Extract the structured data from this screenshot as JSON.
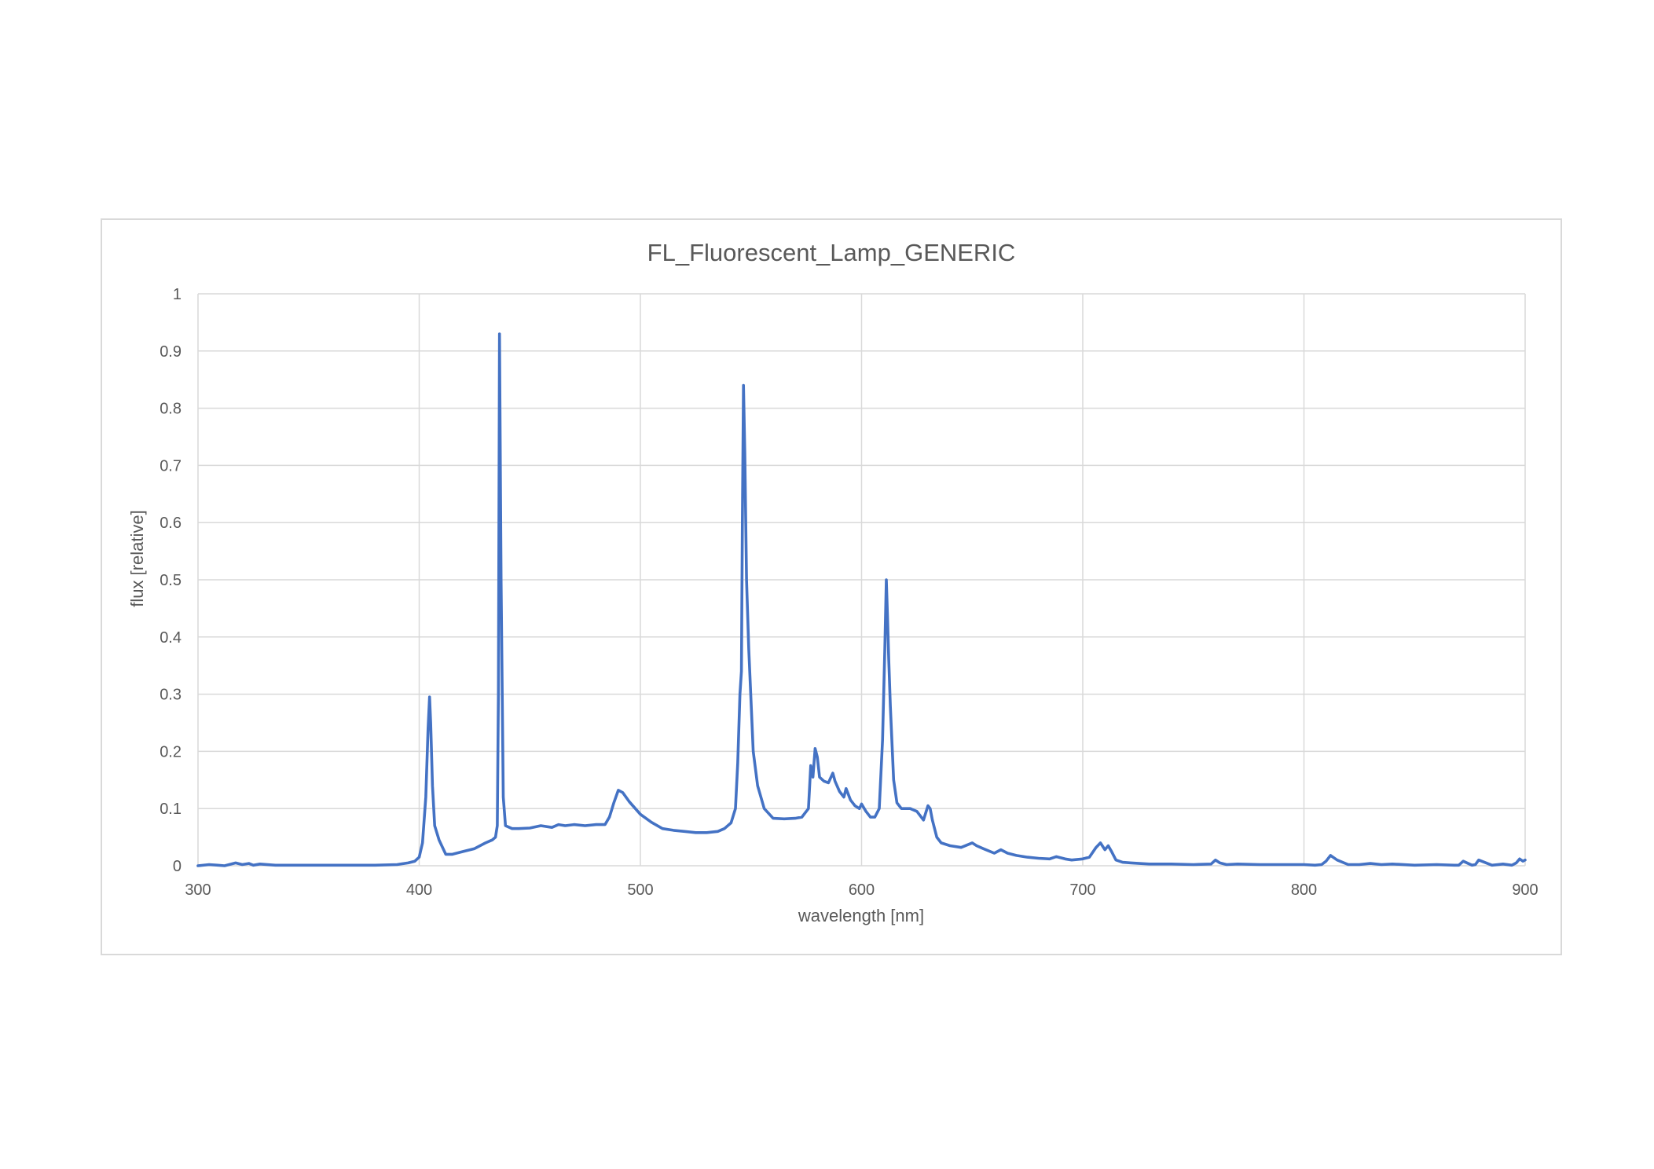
{
  "chart_data": {
    "type": "line",
    "title": "FL_Fluorescent_Lamp_GENERIC",
    "xlabel": "wavelength [nm]",
    "ylabel": "flux [relative]",
    "xlim": [
      300,
      900
    ],
    "ylim": [
      0,
      1
    ],
    "x_ticks": [
      300,
      400,
      500,
      600,
      700,
      800,
      900
    ],
    "y_ticks": [
      0,
      0.1,
      0.2,
      0.3,
      0.4,
      0.5,
      0.6,
      0.7,
      0.8,
      0.9,
      1
    ],
    "x_tick_labels": [
      "300",
      "400",
      "500",
      "600",
      "700",
      "800",
      "900"
    ],
    "y_tick_labels": [
      "0",
      "0.1",
      "0.2",
      "0.3",
      "0.4",
      "0.5",
      "0.6",
      "0.7",
      "0.8",
      "0.9",
      "1"
    ],
    "grid": true,
    "legend": "none",
    "series_color": "#4472c4",
    "series": [
      {
        "x": [
          300,
          305,
          309,
          312,
          317,
          320,
          323,
          325,
          328,
          335,
          345,
          360,
          380,
          390,
          395,
          398,
          400,
          401.5,
          403,
          404,
          404.7,
          405.2,
          406,
          407,
          409,
          412,
          415,
          420,
          425,
          430,
          433,
          434.5,
          435.3,
          435.8,
          436.3,
          437,
          438,
          439,
          442,
          445,
          450,
          455,
          460,
          463,
          466,
          470,
          475,
          480,
          484,
          486,
          488,
          490,
          492,
          495,
          500,
          505,
          510,
          515,
          520,
          525,
          530,
          535,
          538,
          541,
          543,
          544,
          545,
          545.7,
          546.1,
          546.6,
          547.2,
          548,
          549,
          551,
          553,
          556,
          560,
          565,
          570,
          573,
          576,
          577,
          578,
          579,
          580,
          581,
          583,
          585,
          587,
          588,
          590,
          592,
          593,
          595,
          597,
          599,
          600,
          602,
          604,
          606,
          608,
          609.5,
          610.5,
          611.2,
          611.7,
          612.3,
          613,
          614.5,
          616,
          618,
          620,
          622,
          625,
          628,
          630,
          631,
          632,
          634,
          636,
          640,
          645,
          650,
          652,
          655,
          660,
          663,
          666,
          670,
          675,
          680,
          685,
          688,
          692,
          695,
          700,
          703,
          706,
          708,
          710,
          711.5,
          713,
          715,
          718,
          722,
          730,
          740,
          750,
          758,
          760,
          762,
          765,
          770,
          780,
          790,
          800,
          805,
          808,
          810,
          812,
          815,
          820,
          825,
          830,
          835,
          840,
          850,
          860,
          868,
          870,
          872,
          876,
          877.5,
          879,
          885,
          890,
          894,
          896,
          897.5,
          899,
          900
        ],
        "values": [
          0.0,
          0.002,
          0.001,
          0.0,
          0.005,
          0.002,
          0.004,
          0.001,
          0.003,
          0.001,
          0.001,
          0.001,
          0.001,
          0.002,
          0.005,
          0.008,
          0.015,
          0.04,
          0.12,
          0.24,
          0.295,
          0.25,
          0.14,
          0.07,
          0.045,
          0.02,
          0.02,
          0.025,
          0.03,
          0.04,
          0.045,
          0.05,
          0.07,
          0.3,
          0.93,
          0.5,
          0.12,
          0.07,
          0.065,
          0.065,
          0.066,
          0.07,
          0.067,
          0.072,
          0.07,
          0.072,
          0.07,
          0.072,
          0.072,
          0.085,
          0.11,
          0.132,
          0.128,
          0.112,
          0.09,
          0.076,
          0.065,
          0.062,
          0.06,
          0.058,
          0.058,
          0.06,
          0.065,
          0.075,
          0.1,
          0.18,
          0.3,
          0.34,
          0.6,
          0.84,
          0.72,
          0.5,
          0.38,
          0.2,
          0.14,
          0.1,
          0.083,
          0.082,
          0.083,
          0.085,
          0.1,
          0.175,
          0.155,
          0.205,
          0.19,
          0.155,
          0.148,
          0.145,
          0.162,
          0.148,
          0.13,
          0.12,
          0.135,
          0.115,
          0.105,
          0.1,
          0.108,
          0.095,
          0.085,
          0.085,
          0.1,
          0.22,
          0.38,
          0.5,
          0.44,
          0.36,
          0.28,
          0.15,
          0.11,
          0.1,
          0.1,
          0.1,
          0.095,
          0.08,
          0.105,
          0.1,
          0.08,
          0.05,
          0.04,
          0.035,
          0.032,
          0.04,
          0.035,
          0.03,
          0.022,
          0.028,
          0.022,
          0.018,
          0.015,
          0.013,
          0.012,
          0.016,
          0.012,
          0.01,
          0.012,
          0.015,
          0.032,
          0.04,
          0.028,
          0.035,
          0.025,
          0.01,
          0.006,
          0.005,
          0.003,
          0.003,
          0.002,
          0.003,
          0.01,
          0.005,
          0.002,
          0.003,
          0.002,
          0.002,
          0.002,
          0.001,
          0.002,
          0.008,
          0.018,
          0.01,
          0.002,
          0.002,
          0.004,
          0.002,
          0.003,
          0.001,
          0.002,
          0.001,
          0.001,
          0.008,
          0.001,
          0.002,
          0.01,
          0.001,
          0.003,
          0.001,
          0.005,
          0.012,
          0.008,
          0.01
        ]
      }
    ]
  }
}
